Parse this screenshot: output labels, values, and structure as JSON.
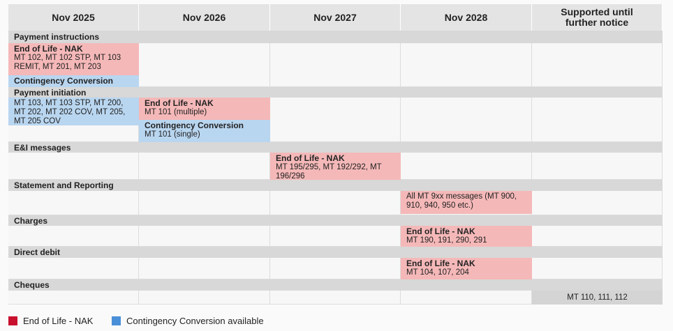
{
  "columns": [
    "Nov 2025",
    "Nov 2026",
    "Nov 2027",
    "Nov 2028",
    "Supported until further notice"
  ],
  "sections": [
    {
      "title": "Payment instructions",
      "blocks": [
        {
          "heading": "End of Life - NAK",
          "text": "MT 102, MT 102 STP, MT 103 REMIT, MT 201, MT 203",
          "color": "#f5b8b8"
        },
        {
          "heading": "Contingency Conversion",
          "color": "#b9d6f0"
        }
      ]
    },
    {
      "title": "Payment initiation",
      "blocks": [
        {
          "text": "MT 103, MT 103 STP, MT 200, MT 202, MT 202 COV, MT 205, MT 205 COV",
          "color": "#b9d6f0"
        },
        {
          "heading": "End of Life - NAK",
          "text": "MT 101 (multiple)",
          "color": "#f5b8b8"
        },
        {
          "heading": "Contingency Conversion",
          "text": "MT 101 (single)",
          "color": "#b9d6f0"
        }
      ]
    },
    {
      "title": "E&I messages",
      "blocks": [
        {
          "heading": "End of Life - NAK",
          "text": "MT 195/295, MT 192/292, MT 196/296",
          "color": "#f5b8b8"
        }
      ]
    },
    {
      "title": "Statement and Reporting",
      "blocks": [
        {
          "text": "All MT 9xx messages (MT 900, 910, 940, 950 etc.)",
          "color": "#f5b8b8"
        }
      ]
    },
    {
      "title": "Charges",
      "blocks": [
        {
          "heading": "End of Life - NAK",
          "text": "MT 190, 191, 290, 291",
          "color": "#f5b8b8"
        }
      ]
    },
    {
      "title": "Direct debit",
      "blocks": [
        {
          "heading": "End of Life - NAK",
          "text": "MT 104, 107, 204",
          "color": "#f5b8b8"
        }
      ]
    },
    {
      "title": "Cheques",
      "blocks": [
        {
          "text": "MT 110, 111, 112",
          "color": "#d4d4d4"
        }
      ]
    }
  ],
  "legend": [
    {
      "label": "End of Life - NAK",
      "color": "#c8102e"
    },
    {
      "label": "Contingency Conversion available",
      "color": "#4a90d9"
    }
  ]
}
